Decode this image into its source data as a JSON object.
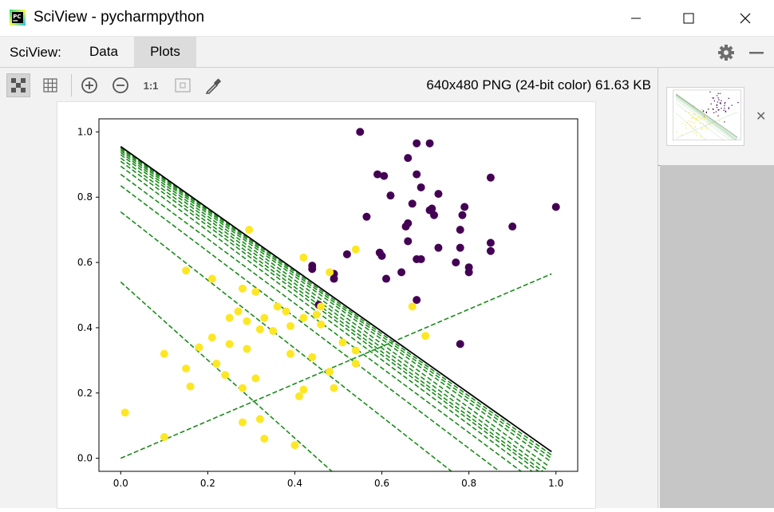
{
  "window": {
    "title": "SciView - pycharmpython",
    "app_icon_text": "PC"
  },
  "tabs": {
    "label": "SciView:",
    "items": [
      {
        "label": "Data"
      },
      {
        "label": "Plots",
        "active": true
      }
    ]
  },
  "toolbar": {
    "tools": [
      "grid-pattern-icon",
      "table-grid-icon",
      "zoom-in-icon",
      "zoom-out-icon",
      "actual-size-icon",
      "fit-icon",
      "color-picker-icon"
    ],
    "actual_size_label": "1:1",
    "image_info": "640x480 PNG (24-bit color) 61.63 KB"
  },
  "colors": {
    "class0": "#440154",
    "class1": "#fde725",
    "boundary": "#000000",
    "iteration_lines": "#1a8c1a"
  },
  "chart_data": {
    "type": "scatter",
    "title": "",
    "xlabel": "",
    "ylabel": "",
    "xlim": [
      -0.05,
      1.05
    ],
    "ylim": [
      -0.04,
      1.04
    ],
    "xticks": [
      "0.0",
      "0.2",
      "0.4",
      "0.6",
      "0.8",
      "1.0"
    ],
    "yticks": [
      "0.0",
      "0.2",
      "0.4",
      "0.6",
      "0.8",
      "1.0"
    ],
    "series": [
      {
        "class": 0,
        "color": "#440154",
        "points": [
          [
            0.55,
            1.0
          ],
          [
            0.68,
            0.965
          ],
          [
            0.71,
            0.965
          ],
          [
            0.66,
            0.92
          ],
          [
            0.59,
            0.87
          ],
          [
            0.605,
            0.865
          ],
          [
            0.68,
            0.87
          ],
          [
            0.69,
            0.83
          ],
          [
            0.85,
            0.86
          ],
          [
            0.62,
            0.805
          ],
          [
            0.73,
            0.81
          ],
          [
            0.67,
            0.78
          ],
          [
            0.71,
            0.76
          ],
          [
            0.715,
            0.765
          ],
          [
            0.72,
            0.745
          ],
          [
            0.785,
            0.745
          ],
          [
            0.79,
            0.77
          ],
          [
            0.565,
            0.74
          ],
          [
            0.66,
            0.72
          ],
          [
            0.655,
            0.71
          ],
          [
            0.78,
            0.7
          ],
          [
            0.9,
            0.71
          ],
          [
            1.0,
            0.77
          ],
          [
            0.595,
            0.63
          ],
          [
            0.6,
            0.62
          ],
          [
            0.66,
            0.665
          ],
          [
            0.85,
            0.66
          ],
          [
            0.85,
            0.635
          ],
          [
            0.73,
            0.645
          ],
          [
            0.78,
            0.645
          ],
          [
            0.68,
            0.61
          ],
          [
            0.69,
            0.61
          ],
          [
            0.77,
            0.6
          ],
          [
            0.8,
            0.585
          ],
          [
            0.8,
            0.57
          ],
          [
            0.52,
            0.625
          ],
          [
            0.44,
            0.59
          ],
          [
            0.44,
            0.58
          ],
          [
            0.49,
            0.565
          ],
          [
            0.49,
            0.55
          ],
          [
            0.61,
            0.55
          ],
          [
            0.645,
            0.57
          ],
          [
            0.455,
            0.47
          ],
          [
            0.68,
            0.485
          ],
          [
            0.78,
            0.35
          ]
        ]
      },
      {
        "class": 1,
        "color": "#fde725",
        "points": [
          [
            0.295,
            0.7
          ],
          [
            0.42,
            0.615
          ],
          [
            0.15,
            0.575
          ],
          [
            0.21,
            0.55
          ],
          [
            0.48,
            0.57
          ],
          [
            0.54,
            0.64
          ],
          [
            0.28,
            0.52
          ],
          [
            0.31,
            0.51
          ],
          [
            0.27,
            0.45
          ],
          [
            0.45,
            0.44
          ],
          [
            0.42,
            0.43
          ],
          [
            0.36,
            0.465
          ],
          [
            0.38,
            0.45
          ],
          [
            0.46,
            0.465
          ],
          [
            0.29,
            0.42
          ],
          [
            0.33,
            0.43
          ],
          [
            0.25,
            0.43
          ],
          [
            0.39,
            0.405
          ],
          [
            0.46,
            0.41
          ],
          [
            0.32,
            0.395
          ],
          [
            0.35,
            0.39
          ],
          [
            0.21,
            0.37
          ],
          [
            0.25,
            0.35
          ],
          [
            0.29,
            0.335
          ],
          [
            0.18,
            0.34
          ],
          [
            0.1,
            0.32
          ],
          [
            0.39,
            0.32
          ],
          [
            0.44,
            0.31
          ],
          [
            0.51,
            0.355
          ],
          [
            0.54,
            0.33
          ],
          [
            0.54,
            0.29
          ],
          [
            0.48,
            0.265
          ],
          [
            0.22,
            0.29
          ],
          [
            0.15,
            0.275
          ],
          [
            0.24,
            0.255
          ],
          [
            0.28,
            0.215
          ],
          [
            0.31,
            0.245
          ],
          [
            0.16,
            0.22
          ],
          [
            0.41,
            0.19
          ],
          [
            0.42,
            0.21
          ],
          [
            0.49,
            0.215
          ],
          [
            0.32,
            0.12
          ],
          [
            0.28,
            0.11
          ],
          [
            0.01,
            0.14
          ],
          [
            0.1,
            0.065
          ],
          [
            0.33,
            0.06
          ],
          [
            0.4,
            0.04
          ],
          [
            0.67,
            0.465
          ],
          [
            0.7,
            0.375
          ]
        ]
      }
    ],
    "decision_boundary": {
      "x": [
        0.0,
        0.99
      ],
      "y": [
        0.955,
        0.02
      ],
      "style": "solid",
      "color": "#000000"
    },
    "iteration_lines": [
      {
        "x": [
          0.0,
          0.99
        ],
        "y": [
          0.0,
          0.565
        ],
        "style": "dashed"
      },
      {
        "x": [
          0.0,
          0.485
        ],
        "y": [
          0.54,
          -0.04
        ],
        "style": "dashed"
      },
      {
        "x": [
          0.0,
          0.76
        ],
        "y": [
          0.755,
          -0.04
        ],
        "style": "dashed"
      },
      {
        "x": [
          0.0,
          0.87
        ],
        "y": [
          0.835,
          -0.04
        ],
        "style": "dashed"
      },
      {
        "x": [
          0.0,
          0.92
        ],
        "y": [
          0.87,
          -0.04
        ],
        "style": "dashed"
      },
      {
        "x": [
          0.0,
          0.945
        ],
        "y": [
          0.895,
          -0.04
        ],
        "style": "dashed"
      },
      {
        "x": [
          0.0,
          0.96
        ],
        "y": [
          0.91,
          -0.04
        ],
        "style": "dashed"
      },
      {
        "x": [
          0.0,
          0.97
        ],
        "y": [
          0.92,
          -0.04
        ],
        "style": "dashed"
      },
      {
        "x": [
          0.0,
          0.978
        ],
        "y": [
          0.93,
          -0.035
        ],
        "style": "dashed"
      },
      {
        "x": [
          0.0,
          0.984
        ],
        "y": [
          0.937,
          -0.025
        ],
        "style": "dashed"
      },
      {
        "x": [
          0.0,
          0.988
        ],
        "y": [
          0.943,
          -0.01
        ],
        "style": "dashed"
      },
      {
        "x": [
          0.0,
          0.99
        ],
        "y": [
          0.948,
          0.0
        ],
        "style": "dashed"
      },
      {
        "x": [
          0.0,
          0.99
        ],
        "y": [
          0.952,
          0.01
        ],
        "style": "dashed"
      }
    ]
  }
}
